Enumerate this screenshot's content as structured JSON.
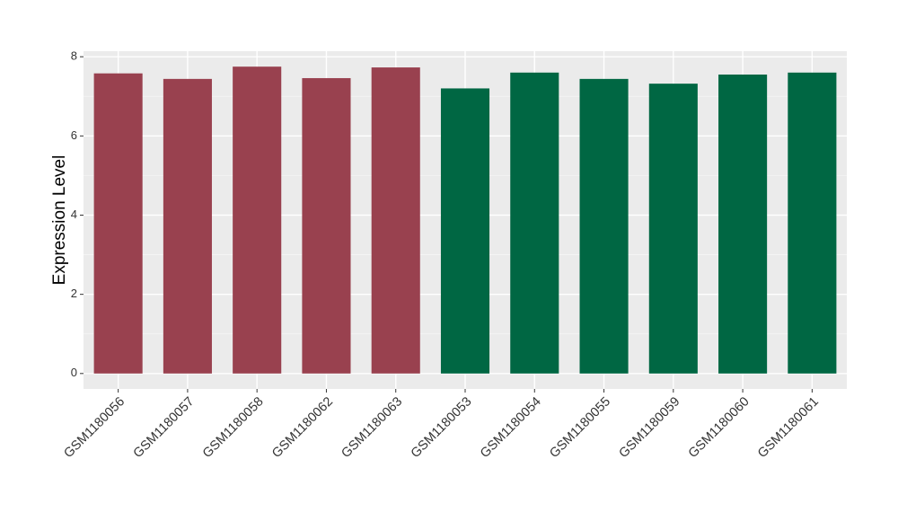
{
  "chart_data": {
    "type": "bar",
    "y_label": "Expression Level",
    "categories": [
      "GSM1180056",
      "GSM1180057",
      "GSM1180058",
      "GSM1180062",
      "GSM1180063",
      "GSM1180053",
      "GSM1180054",
      "GSM1180055",
      "GSM1180059",
      "GSM1180060",
      "GSM1180061"
    ],
    "values": [
      7.58,
      7.44,
      7.75,
      7.46,
      7.73,
      7.2,
      7.6,
      7.44,
      7.32,
      7.55,
      7.6
    ],
    "colors": [
      "#99414f",
      "#99414f",
      "#99414f",
      "#99414f",
      "#99414f",
      "#006743",
      "#006743",
      "#006743",
      "#006743",
      "#006743",
      "#006743"
    ],
    "ylim": [
      -0.39,
      8.14
    ],
    "yticks": [
      0,
      2,
      4,
      6,
      8
    ],
    "grid": true
  }
}
